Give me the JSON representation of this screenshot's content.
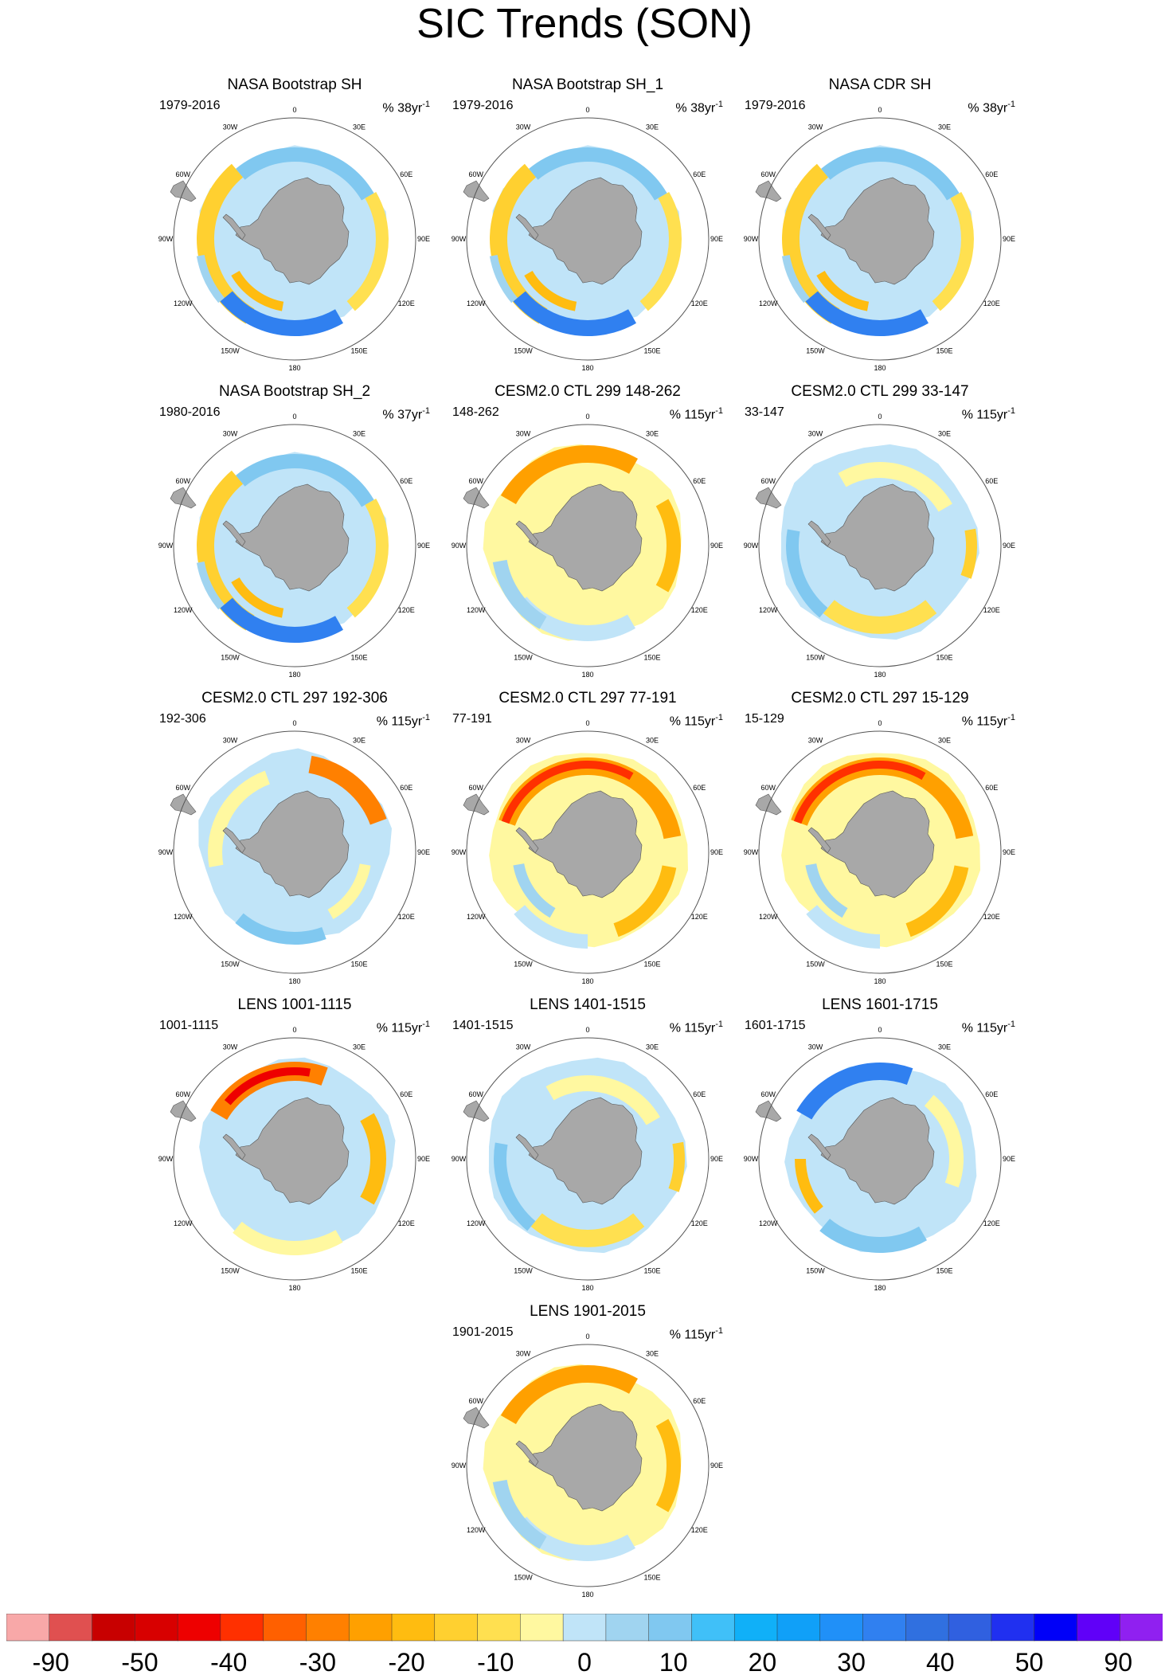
{
  "title": "SIC Trends (SON)",
  "colors": {
    "land": "#a8a8a8",
    "ocean": "#ffffff",
    "outline": "#555555"
  },
  "longitude_labels": [
    "0",
    "30E",
    "60E",
    "90E",
    "120E",
    "150E",
    "180",
    "150W",
    "120W",
    "90W",
    "60W",
    "30W"
  ],
  "panels": [
    {
      "title": "NASA Bootstrap SH",
      "period": "1979-2016",
      "units_prefix": "% 38yr",
      "units_exp": "-1",
      "pattern": "obs"
    },
    {
      "title": "NASA Bootstrap SH_1",
      "period": "1979-2016",
      "units_prefix": "% 38yr",
      "units_exp": "-1",
      "pattern": "obs"
    },
    {
      "title": "NASA CDR SH",
      "period": "1979-2016",
      "units_prefix": "% 38yr",
      "units_exp": "-1",
      "pattern": "obs"
    },
    {
      "title": "NASA Bootstrap SH_2",
      "period": "1980-2016",
      "units_prefix": "% 37yr",
      "units_exp": "-1",
      "pattern": "obs"
    },
    {
      "title": "CESM2.0 CTL 299 148-262",
      "period": "148-262",
      "units_prefix": "% 115yr",
      "units_exp": "-1",
      "pattern": "decline"
    },
    {
      "title": "CESM2.0 CTL 299 33-147",
      "period": "33-147",
      "units_prefix": "% 115yr",
      "units_exp": "-1",
      "pattern": "mixed"
    },
    {
      "title": "CESM2.0 CTL 297 192-306",
      "period": "192-306",
      "units_prefix": "% 115yr",
      "units_exp": "-1",
      "pattern": "mixed-ne"
    },
    {
      "title": "CESM2.0 CTL 297 77-191",
      "period": "77-191",
      "units_prefix": "% 115yr",
      "units_exp": "-1",
      "pattern": "strong-decline"
    },
    {
      "title": "CESM2.0 CTL 297 15-129",
      "period": "15-129",
      "units_prefix": "% 115yr",
      "units_exp": "-1",
      "pattern": "strong-decline"
    },
    {
      "title": "LENS 1001-1115",
      "period": "1001-1115",
      "units_prefix": "% 115yr",
      "units_exp": "-1",
      "pattern": "decline-n"
    },
    {
      "title": "LENS 1401-1515",
      "period": "1401-1515",
      "units_prefix": "% 115yr",
      "units_exp": "-1",
      "pattern": "mixed"
    },
    {
      "title": "LENS 1601-1715",
      "period": "1601-1715",
      "units_prefix": "% 115yr",
      "units_exp": "-1",
      "pattern": "increase"
    },
    {
      "title": "LENS 1901-2015",
      "period": "1901-2015",
      "units_prefix": "% 115yr",
      "units_exp": "-1",
      "pattern": "decline"
    }
  ],
  "colorbar": {
    "labels": [
      "-90",
      "-50",
      "-40",
      "-30",
      "-20",
      "-10",
      "0",
      "10",
      "20",
      "30",
      "40",
      "50",
      "90"
    ],
    "colors": [
      "#f8a8a8",
      "#e05050",
      "#c80000",
      "#d80000",
      "#ee0000",
      "#ff3000",
      "#ff6000",
      "#ff8000",
      "#ffa000",
      "#ffbc10",
      "#ffd030",
      "#ffe050",
      "#fff8a0",
      "#c0e4f8",
      "#a0d4f0",
      "#80c8f0",
      "#40c0f8",
      "#10b0f8",
      "#10a0f8",
      "#2090f8",
      "#3080f0",
      "#3070e0",
      "#3060e0",
      "#2030f0",
      "#0000f8",
      "#6000f8",
      "#9020f0"
    ]
  }
}
